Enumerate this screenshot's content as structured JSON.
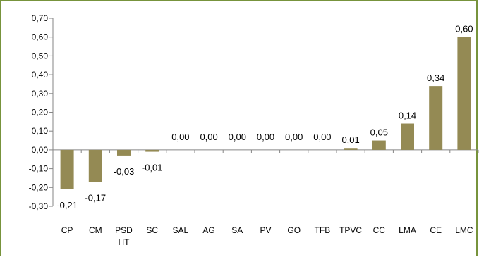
{
  "chart_data": {
    "type": "bar",
    "title": "",
    "xlabel": "",
    "ylabel": "",
    "ylim": [
      -0.3,
      0.7
    ],
    "y_ticks": [
      "-0,30",
      "-0,20",
      "-0,10",
      "0,00",
      "0,10",
      "0,20",
      "0,30",
      "0,40",
      "0,50",
      "0,60",
      "0,70"
    ],
    "categories": [
      [
        "CP"
      ],
      [
        "CM"
      ],
      [
        "PSD",
        "HT"
      ],
      [
        "SC"
      ],
      [
        "SAL"
      ],
      [
        "AG"
      ],
      [
        "SA"
      ],
      [
        "PV"
      ],
      [
        "GO"
      ],
      [
        "TFB"
      ],
      [
        "TPVC"
      ],
      [
        "CC"
      ],
      [
        "LMA"
      ],
      [
        "CE"
      ],
      [
        "LMC"
      ]
    ],
    "values": [
      -0.21,
      -0.17,
      -0.03,
      -0.01,
      0.0,
      0.0,
      0.0,
      0.0,
      0.0,
      0.0,
      0.01,
      0.05,
      0.14,
      0.34,
      0.6
    ],
    "value_labels": [
      "-0,21",
      "-0,17",
      "-0,03",
      "-0,01",
      "0,00",
      "0,00",
      "0,00",
      "0,00",
      "0,00",
      "0,00",
      "0,01",
      "0,05",
      "0,14",
      "0,34",
      "0,60"
    ],
    "bar_color": "#948a54",
    "frame_color": "#77933c",
    "grid": false,
    "legend": "none"
  }
}
